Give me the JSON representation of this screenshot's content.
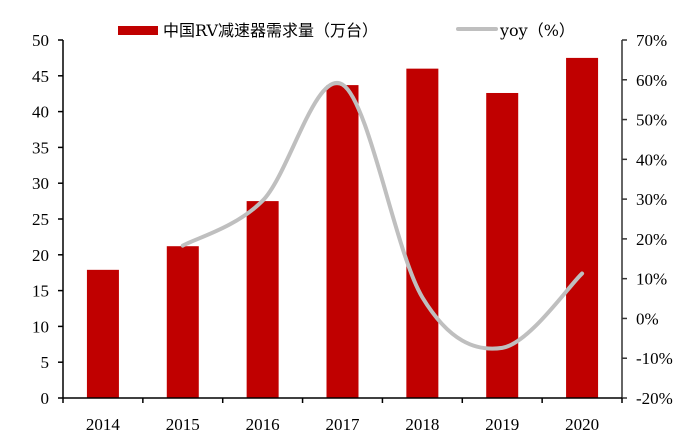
{
  "chart_data": {
    "type": "bar+line",
    "title": "",
    "categories": [
      "2014",
      "2015",
      "2016",
      "2017",
      "2018",
      "2019",
      "2020"
    ],
    "series": [
      {
        "name": "中国RV减速器需求量（万台）",
        "type": "bar",
        "axis": "left",
        "color": "#c00000",
        "values": [
          17.9,
          21.2,
          27.5,
          43.7,
          46.0,
          42.6,
          47.5
        ]
      },
      {
        "name": "yoy（%）",
        "type": "line",
        "axis": "right",
        "color": "#bfbfbf",
        "smooth": true,
        "values": [
          null,
          18.3,
          29.6,
          58.8,
          5.3,
          -7.4,
          11.3
        ]
      }
    ],
    "left_axis": {
      "min": 0,
      "max": 50,
      "step": 5,
      "ticks": [
        "0",
        "5",
        "10",
        "15",
        "20",
        "25",
        "30",
        "35",
        "40",
        "45",
        "50"
      ]
    },
    "right_axis": {
      "min": -20,
      "max": 70,
      "step": 10,
      "ticks": [
        "-20%",
        "-10%",
        "0%",
        "10%",
        "20%",
        "30%",
        "40%",
        "50%",
        "60%",
        "70%"
      ]
    },
    "xlabel": "",
    "ylabel": "",
    "grid": false,
    "legend_position": "top"
  },
  "legend": {
    "bar_label": "中国RV减速器需求量（万台）",
    "line_label": "yoy（%）"
  }
}
